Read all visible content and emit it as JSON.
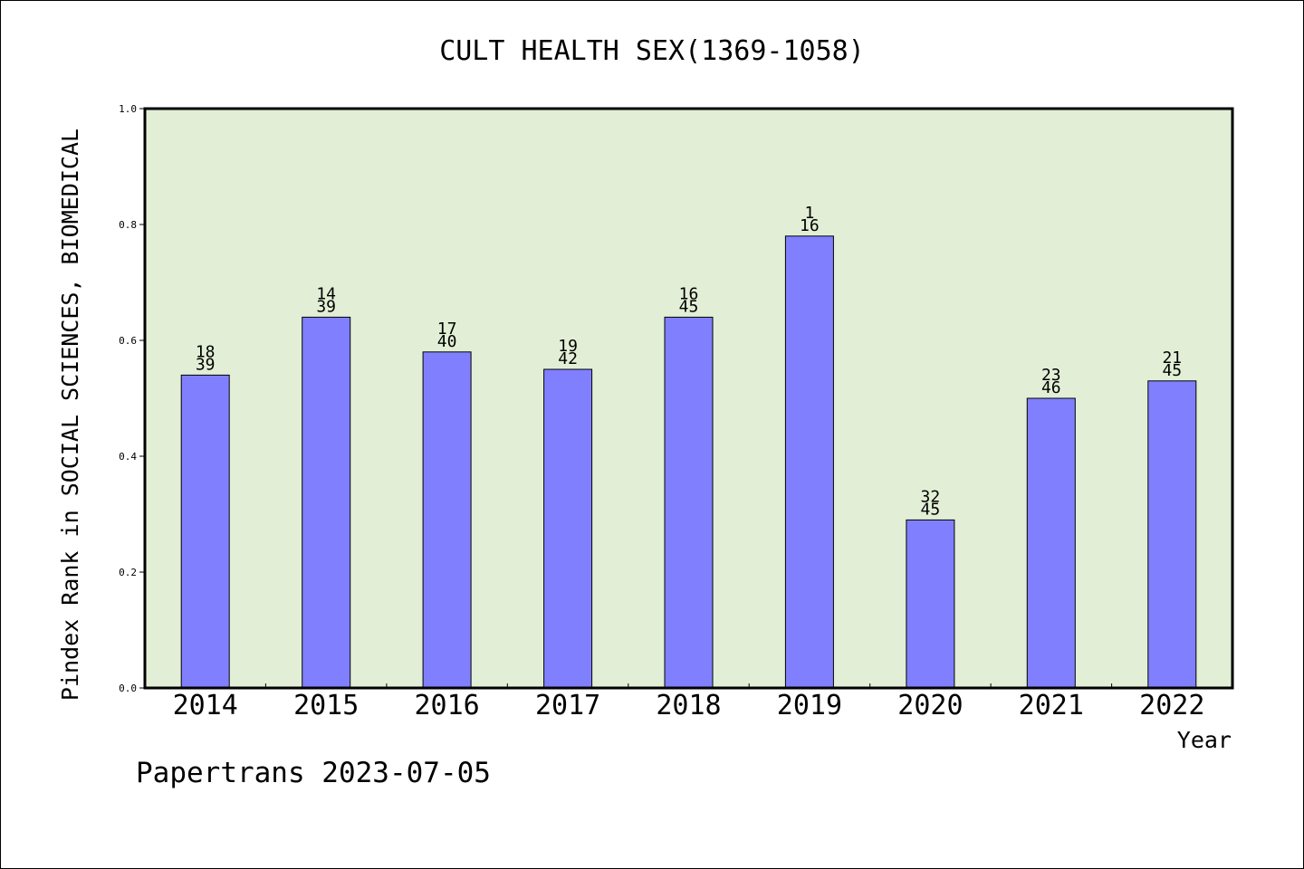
{
  "chart_data": {
    "type": "bar",
    "title": "CULT HEALTH SEX(1369-1058)",
    "xlabel": "Year",
    "ylabel": "Pindex Rank in SOCIAL SCIENCES, BIOMEDICAL",
    "ylim": [
      0,
      1.0
    ],
    "yticks": [
      "0.0",
      "0.2",
      "0.4",
      "0.6",
      "0.8",
      "1.0"
    ],
    "grid": false,
    "categories": [
      "2014",
      "2015",
      "2016",
      "2017",
      "2018",
      "2019",
      "2020",
      "2021",
      "2022"
    ],
    "values": [
      0.54,
      0.64,
      0.58,
      0.55,
      0.64,
      0.78,
      0.29,
      0.5,
      0.53
    ],
    "rank_labels": [
      {
        "rank": "18",
        "total": "39"
      },
      {
        "rank": "14",
        "total": "39"
      },
      {
        "rank": "17",
        "total": "40"
      },
      {
        "rank": "19",
        "total": "42"
      },
      {
        "rank": "16",
        "total": "45"
      },
      {
        "rank": "1",
        "total": "16"
      },
      {
        "rank": "32",
        "total": "45"
      },
      {
        "rank": "23",
        "total": "46"
      },
      {
        "rank": "21",
        "total": "45"
      }
    ],
    "colors": {
      "bar": "#8080ff",
      "plot_background": "#e2efd6",
      "axis": "#000000"
    }
  },
  "footer": {
    "credit": "Papertrans 2023-07-05"
  }
}
